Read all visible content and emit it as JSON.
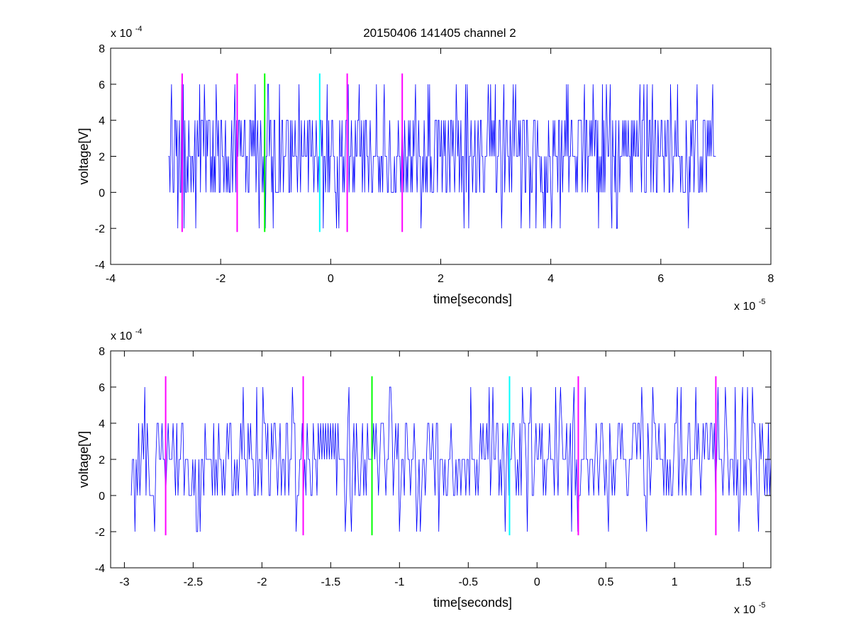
{
  "title": "20150406 141405 channel 2",
  "chart_data": [
    {
      "type": "line",
      "xlabel": "time[seconds]",
      "ylabel": "voltage[V]",
      "x_exponent_label": "x 10",
      "x_exponent": "-5",
      "y_exponent_label": "x 10",
      "y_exponent": "-4",
      "xlim": [
        -4,
        8
      ],
      "ylim": [
        -4,
        8
      ],
      "xticks": [
        -4,
        -2,
        0,
        2,
        4,
        6,
        8
      ],
      "xtick_labels": [
        "-4",
        "-2",
        "0",
        "2",
        "4",
        "6",
        "8"
      ],
      "yticks": [
        -4,
        -2,
        0,
        2,
        4,
        6,
        8
      ],
      "ytick_labels": [
        "-4",
        "-2",
        "0",
        "2",
        "4",
        "6",
        "8"
      ],
      "grid": false,
      "signal": {
        "color": "#0000ff",
        "x_range": [
          -2.95,
          7.0
        ],
        "levels": [
          -2,
          0,
          2,
          4,
          6
        ],
        "note_values": "approximate noisy quantized trace between -2 and 6 (x 10^-4 V)"
      },
      "markers": [
        {
          "x": -2.7,
          "ymin": -2.2,
          "ymax": 6.6,
          "color": "#ff00ff"
        },
        {
          "x": -1.7,
          "ymin": -2.2,
          "ymax": 6.6,
          "color": "#ff00ff"
        },
        {
          "x": -1.2,
          "ymin": -2.2,
          "ymax": 6.6,
          "color": "#00ff00"
        },
        {
          "x": -0.2,
          "ymin": -2.2,
          "ymax": 6.6,
          "color": "#00ffff"
        },
        {
          "x": 0.3,
          "ymin": -2.2,
          "ymax": 6.6,
          "color": "#ff00ff"
        },
        {
          "x": 1.3,
          "ymin": -2.2,
          "ymax": 6.6,
          "color": "#ff00ff"
        }
      ]
    },
    {
      "type": "line",
      "xlabel": "time[seconds]",
      "ylabel": "voltage[V]",
      "x_exponent_label": "x 10",
      "x_exponent": "-5",
      "y_exponent_label": "x 10",
      "y_exponent": "-4",
      "xlim": [
        -3.1,
        1.7
      ],
      "ylim": [
        -4,
        8
      ],
      "xticks": [
        -3,
        -2.5,
        -2,
        -1.5,
        -1,
        -0.5,
        0,
        0.5,
        1,
        1.5
      ],
      "xtick_labels": [
        "-3",
        "-2.5",
        "-2",
        "-1.5",
        "-1",
        "-0.5",
        "0",
        "0.5",
        "1",
        "1.5"
      ],
      "yticks": [
        -4,
        -2,
        0,
        2,
        4,
        6,
        8
      ],
      "ytick_labels": [
        "-4",
        "-2",
        "0",
        "2",
        "4",
        "6",
        "8"
      ],
      "grid": false,
      "signal": {
        "color": "#0000ff",
        "x_range": [
          -2.95,
          1.7
        ],
        "levels": [
          -2,
          0,
          2,
          4,
          6
        ],
        "note_values": "approximate noisy quantized trace between -2 and 6 (x 10^-4 V)"
      },
      "markers": [
        {
          "x": -2.7,
          "ymin": -2.2,
          "ymax": 6.6,
          "color": "#ff00ff"
        },
        {
          "x": -1.7,
          "ymin": -2.2,
          "ymax": 6.6,
          "color": "#ff00ff"
        },
        {
          "x": -1.2,
          "ymin": -2.2,
          "ymax": 6.6,
          "color": "#00ff00"
        },
        {
          "x": -0.2,
          "ymin": -2.2,
          "ymax": 6.6,
          "color": "#00ffff"
        },
        {
          "x": 0.3,
          "ymin": -2.2,
          "ymax": 6.6,
          "color": "#ff00ff"
        },
        {
          "x": 1.3,
          "ymin": -2.2,
          "ymax": 6.6,
          "color": "#ff00ff"
        }
      ]
    }
  ]
}
